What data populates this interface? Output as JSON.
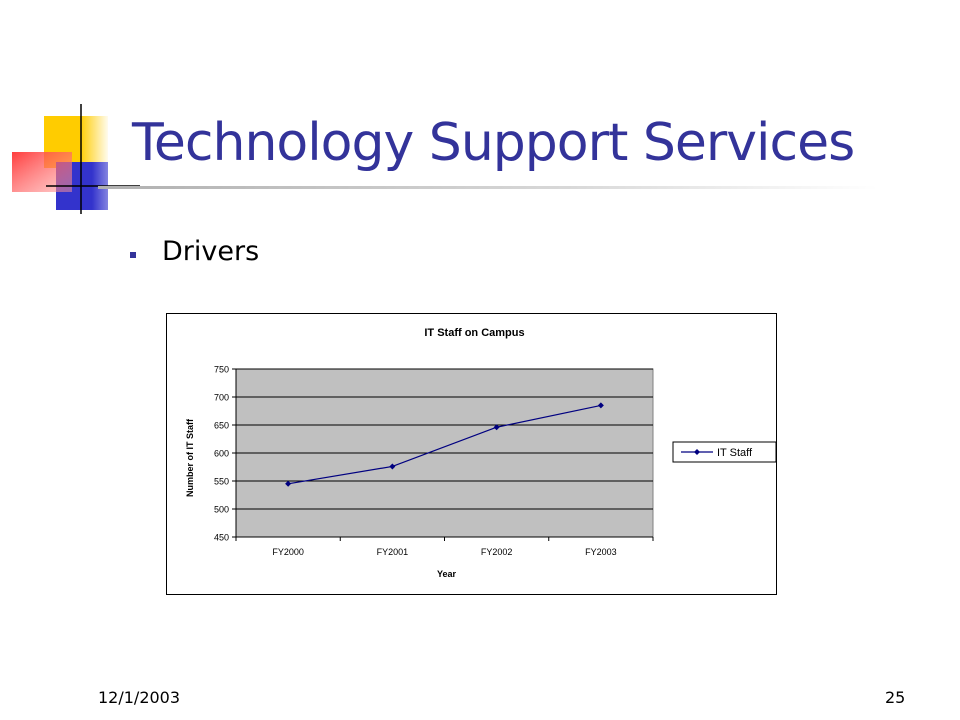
{
  "slide": {
    "title": "Technology Support Services",
    "bullets": [
      "Drivers"
    ],
    "footer_date": "12/1/2003",
    "page_number": "25"
  },
  "theme": {
    "title_color": "#33339a",
    "logo_yellow": "#ffcc00",
    "logo_blue": "#3333cc",
    "logo_red": "#ff3333",
    "plot_bg": "#c0c0c0",
    "series_color": "#000080"
  },
  "chart_data": {
    "type": "line",
    "title": "IT Staff on Campus",
    "xlabel": "Year",
    "ylabel": "Number of IT Staff",
    "categories": [
      "FY2000",
      "FY2001",
      "FY2002",
      "FY2003"
    ],
    "series": [
      {
        "name": "IT Staff",
        "values": [
          545,
          576,
          646,
          685
        ]
      }
    ],
    "ylim": [
      450,
      750
    ],
    "yticks": [
      450,
      500,
      550,
      600,
      650,
      700,
      750
    ],
    "grid": true,
    "legend": "right",
    "marker": "diamond"
  }
}
